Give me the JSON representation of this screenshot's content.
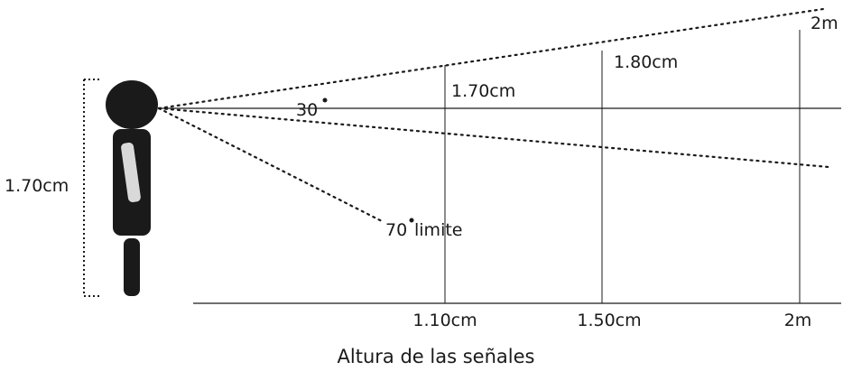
{
  "person": {
    "height_label": "1.70cm"
  },
  "sightlines": {
    "upper_angle_label": "30",
    "lower_angle_label": "70",
    "lower_angle_suffix": "limite"
  },
  "vertical_markers": [
    {
      "top_label": "1.70cm",
      "bottom_label": "1.10cm"
    },
    {
      "top_label": "1.80cm",
      "bottom_label": "1.50cm"
    },
    {
      "top_label": "2m",
      "bottom_label": "2m"
    }
  ],
  "axis": {
    "caption": "Altura de las señales"
  },
  "colors": {
    "ink": "#1a1a1a",
    "reflection": "#d9d9d9"
  }
}
